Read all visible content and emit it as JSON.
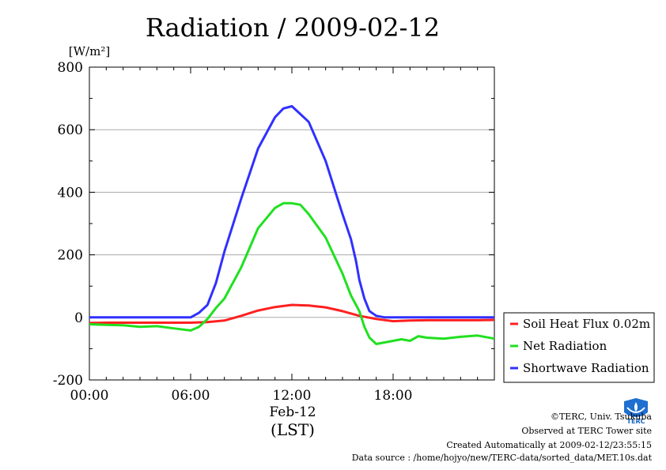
{
  "chart_data": {
    "type": "line",
    "title": "Radiation / 2009-02-12",
    "ylabel_unit": "[W/m²]",
    "ylim": [
      -200,
      800
    ],
    "yticks": [
      -200,
      0,
      200,
      400,
      600,
      800
    ],
    "y_tick_labels": [
      "-200",
      "0",
      "200",
      "400",
      "600",
      "800"
    ],
    "xlim": [
      0,
      24
    ],
    "xticks": [
      0,
      6,
      12,
      18
    ],
    "x_tick_labels": [
      "00:00",
      "06:00",
      "12:00",
      "18:00"
    ],
    "x_date_label": "Feb-12",
    "xlabel": "(LST)",
    "grid": true,
    "legend_position": "right",
    "series": [
      {
        "name": "Soil Heat Flux 0.02m",
        "color": "#ff2020",
        "x": [
          0,
          1,
          2,
          3,
          4,
          5,
          6,
          7,
          8,
          9,
          10,
          11,
          12,
          13,
          14,
          15,
          16,
          17,
          18,
          19,
          20,
          21,
          22,
          23,
          24
        ],
        "y": [
          -18,
          -17,
          -17,
          -17,
          -17,
          -17,
          -17,
          -15,
          -10,
          5,
          22,
          33,
          40,
          38,
          32,
          20,
          5,
          -5,
          -12,
          -10,
          -9,
          -9,
          -9,
          -9,
          -8
        ]
      },
      {
        "name": "Net Radiation",
        "color": "#20e020",
        "x": [
          0,
          1,
          2,
          3,
          4,
          5,
          6,
          6.5,
          7,
          7.5,
          8,
          9,
          10,
          11,
          11.5,
          12,
          12.5,
          13,
          14,
          15,
          15.5,
          16,
          16.3,
          16.6,
          17,
          17.5,
          18,
          18.5,
          19,
          19.5,
          20,
          21,
          22,
          23,
          24
        ],
        "y": [
          -22,
          -24,
          -25,
          -30,
          -28,
          -35,
          -42,
          -30,
          -5,
          30,
          60,
          160,
          285,
          350,
          365,
          365,
          360,
          330,
          255,
          140,
          70,
          20,
          -30,
          -65,
          -85,
          -80,
          -75,
          -70,
          -75,
          -60,
          -65,
          -68,
          -62,
          -58,
          -68
        ]
      },
      {
        "name": "Shortwave Radiation",
        "color": "#3030ff",
        "x": [
          0,
          2,
          4,
          6,
          6.5,
          7,
          7.5,
          8,
          9,
          10,
          11,
          11.5,
          12,
          12.5,
          13,
          14,
          15,
          15.5,
          15.8,
          16,
          16.3,
          16.6,
          17,
          17.5,
          18,
          20,
          22,
          24
        ],
        "y": [
          0,
          0,
          0,
          0,
          15,
          40,
          110,
          210,
          380,
          540,
          640,
          668,
          675,
          650,
          625,
          500,
          330,
          250,
          180,
          120,
          60,
          20,
          5,
          0,
          0,
          0,
          0,
          0
        ]
      }
    ]
  },
  "credits": {
    "copyright": "©TERC, Univ. Tsukuba",
    "observed": "Observed at TERC Tower site",
    "created": "Created Automatically at 2009-02-12/23:55:15",
    "source": "Data source : /home/hojyo/new/TERC-data/sorted_data/MET.10s.dat"
  },
  "logo": {
    "text": "TERC",
    "icon": "terc-logo-icon",
    "color": "#1565c0"
  }
}
